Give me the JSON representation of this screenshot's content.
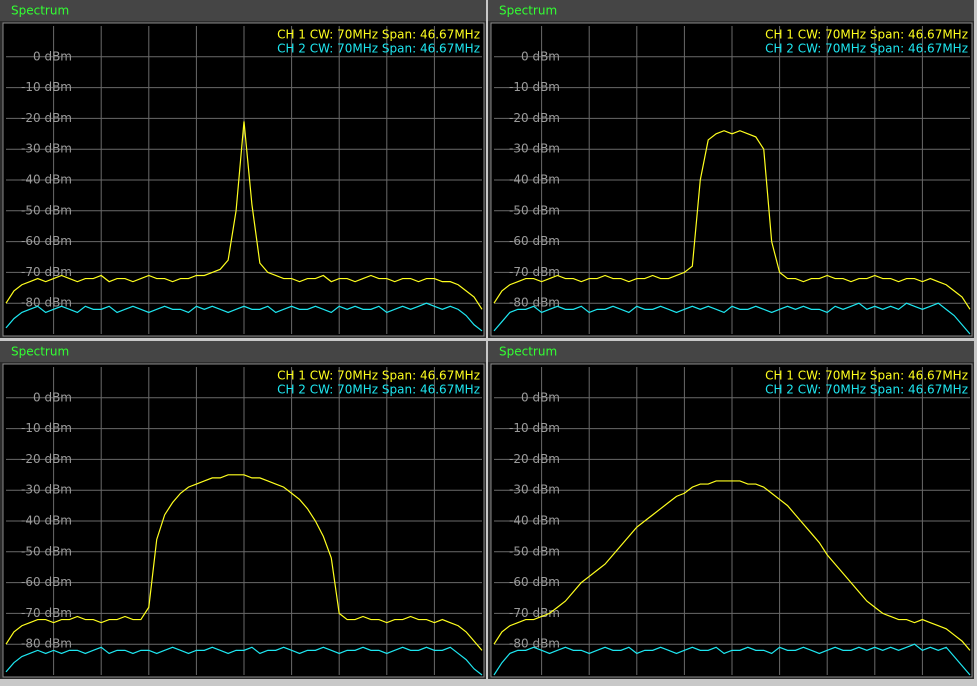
{
  "chart_data": [
    {
      "type": "line",
      "title": "Spectrum",
      "ylim": [
        -90,
        10
      ],
      "yticks": [
        {
          "value": 0,
          "label": "0 dBm"
        },
        {
          "value": -10,
          "label": "-10 dBm"
        },
        {
          "value": -20,
          "label": "-20 dBm"
        },
        {
          "value": -30,
          "label": "-30 dBm"
        },
        {
          "value": -40,
          "label": "-40 dBm"
        },
        {
          "value": -50,
          "label": "-50 dBm"
        },
        {
          "value": -60,
          "label": "-60 dBm"
        },
        {
          "value": -70,
          "label": "-70 dBm"
        },
        {
          "value": -80,
          "label": "-80 dBm"
        }
      ],
      "grid": true,
      "series": [
        {
          "name": "CH 1 CW: 70MHz Span: 46.67MHz",
          "color": "#ffff1e",
          "values": [
            -80,
            -76,
            -74,
            -73,
            -72,
            -73,
            -72,
            -71,
            -72,
            -73,
            -72,
            -72,
            -71,
            -73,
            -72,
            -72,
            -73,
            -72,
            -71,
            -72,
            -72,
            -73,
            -72,
            -72,
            -71,
            -71,
            -70,
            -69,
            -66,
            -50,
            -21,
            -48,
            -67,
            -70,
            -71,
            -72,
            -72,
            -73,
            -72,
            -72,
            -71,
            -73,
            -72,
            -72,
            -73,
            -72,
            -71,
            -72,
            -72,
            -73,
            -72,
            -72,
            -73,
            -72,
            -72,
            -73,
            -73,
            -74,
            -76,
            -78,
            -82
          ]
        },
        {
          "name": "CH 2 CW: 70MHz Span: 46.67MHz",
          "color": "#1ee6f0",
          "values": [
            -88,
            -85,
            -83,
            -82,
            -81,
            -83,
            -82,
            -81,
            -82,
            -83,
            -81,
            -82,
            -82,
            -81,
            -83,
            -82,
            -81,
            -82,
            -83,
            -82,
            -81,
            -82,
            -82,
            -83,
            -81,
            -82,
            -81,
            -82,
            -83,
            -82,
            -81,
            -82,
            -82,
            -81,
            -83,
            -82,
            -81,
            -82,
            -82,
            -81,
            -82,
            -83,
            -81,
            -82,
            -81,
            -82,
            -82,
            -81,
            -83,
            -82,
            -81,
            -82,
            -81,
            -80,
            -81,
            -82,
            -81,
            -82,
            -84,
            -87,
            -89
          ]
        }
      ]
    },
    {
      "type": "line",
      "title": "Spectrum",
      "ylim": [
        -90,
        10
      ],
      "yticks": [
        {
          "value": 0,
          "label": "0 dBm"
        },
        {
          "value": -10,
          "label": "-10 dBm"
        },
        {
          "value": -20,
          "label": "-20 dBm"
        },
        {
          "value": -30,
          "label": "-30 dBm"
        },
        {
          "value": -40,
          "label": "-40 dBm"
        },
        {
          "value": -50,
          "label": "-50 dBm"
        },
        {
          "value": -60,
          "label": "-60 dBm"
        },
        {
          "value": -70,
          "label": "-70 dBm"
        },
        {
          "value": -80,
          "label": "-80 dBm"
        }
      ],
      "grid": true,
      "series": [
        {
          "name": "CH 1 CW: 70MHz Span: 46.67MHz",
          "color": "#ffff1e",
          "values": [
            -80,
            -76,
            -74,
            -73,
            -72,
            -72,
            -73,
            -72,
            -71,
            -72,
            -72,
            -73,
            -72,
            -72,
            -71,
            -72,
            -72,
            -73,
            -72,
            -72,
            -71,
            -72,
            -72,
            -71,
            -70,
            -68,
            -40,
            -27,
            -25,
            -24,
            -25,
            -24,
            -25,
            -26,
            -30,
            -60,
            -70,
            -72,
            -72,
            -73,
            -72,
            -72,
            -71,
            -72,
            -72,
            -73,
            -72,
            -72,
            -71,
            -72,
            -72,
            -73,
            -72,
            -72,
            -73,
            -72,
            -73,
            -74,
            -76,
            -78,
            -82
          ]
        },
        {
          "name": "CH 2 CW: 70MHz Span: 46.67MHz",
          "color": "#1ee6f0",
          "values": [
            -89,
            -86,
            -83,
            -82,
            -82,
            -81,
            -83,
            -82,
            -81,
            -82,
            -82,
            -81,
            -83,
            -82,
            -82,
            -81,
            -82,
            -83,
            -81,
            -82,
            -82,
            -81,
            -82,
            -83,
            -82,
            -81,
            -82,
            -81,
            -82,
            -83,
            -81,
            -82,
            -82,
            -81,
            -82,
            -83,
            -82,
            -81,
            -82,
            -81,
            -82,
            -82,
            -83,
            -81,
            -82,
            -81,
            -80,
            -82,
            -81,
            -82,
            -81,
            -82,
            -80,
            -81,
            -82,
            -81,
            -80,
            -82,
            -84,
            -87,
            -90
          ]
        }
      ]
    },
    {
      "type": "line",
      "title": "Spectrum",
      "ylim": [
        -90,
        10
      ],
      "yticks": [
        {
          "value": 0,
          "label": "0 dBm"
        },
        {
          "value": -10,
          "label": "-10 dBm"
        },
        {
          "value": -20,
          "label": "-20 dBm"
        },
        {
          "value": -30,
          "label": "-30 dBm"
        },
        {
          "value": -40,
          "label": "-40 dBm"
        },
        {
          "value": -50,
          "label": "-50 dBm"
        },
        {
          "value": -60,
          "label": "-60 dBm"
        },
        {
          "value": -70,
          "label": "-70 dBm"
        },
        {
          "value": -80,
          "label": "-80 dBm"
        }
      ],
      "grid": true,
      "series": [
        {
          "name": "CH 1 CW: 70MHz Span: 46.67MHz",
          "color": "#ffff1e",
          "values": [
            -80,
            -76,
            -74,
            -73,
            -72,
            -72,
            -73,
            -72,
            -72,
            -71,
            -72,
            -72,
            -73,
            -72,
            -72,
            -71,
            -72,
            -72,
            -68,
            -46,
            -38,
            -34,
            -31,
            -29,
            -28,
            -27,
            -26,
            -26,
            -25,
            -25,
            -25,
            -26,
            -26,
            -27,
            -28,
            -29,
            -31,
            -33,
            -36,
            -40,
            -45,
            -52,
            -70,
            -72,
            -72,
            -71,
            -72,
            -72,
            -73,
            -72,
            -72,
            -71,
            -72,
            -72,
            -73,
            -72,
            -73,
            -74,
            -76,
            -79,
            -82
          ]
        },
        {
          "name": "CH 2 CW: 70MHz Span: 46.67MHz",
          "color": "#1ee6f0",
          "values": [
            -89,
            -86,
            -84,
            -83,
            -82,
            -83,
            -82,
            -83,
            -82,
            -82,
            -83,
            -82,
            -81,
            -83,
            -82,
            -82,
            -83,
            -82,
            -82,
            -83,
            -82,
            -81,
            -82,
            -83,
            -82,
            -82,
            -81,
            -82,
            -83,
            -82,
            -82,
            -81,
            -83,
            -82,
            -82,
            -81,
            -82,
            -83,
            -82,
            -82,
            -81,
            -82,
            -83,
            -82,
            -82,
            -81,
            -82,
            -82,
            -83,
            -82,
            -81,
            -82,
            -82,
            -81,
            -82,
            -82,
            -81,
            -83,
            -85,
            -88,
            -90
          ]
        }
      ]
    },
    {
      "type": "line",
      "title": "Spectrum",
      "ylim": [
        -90,
        10
      ],
      "yticks": [
        {
          "value": 0,
          "label": "0 dBm"
        },
        {
          "value": -10,
          "label": "-10 dBm"
        },
        {
          "value": -20,
          "label": "-20 dBm"
        },
        {
          "value": -30,
          "label": "-30 dBm"
        },
        {
          "value": -40,
          "label": "-40 dBm"
        },
        {
          "value": -50,
          "label": "-50 dBm"
        },
        {
          "value": -60,
          "label": "-60 dBm"
        },
        {
          "value": -70,
          "label": "-70 dBm"
        },
        {
          "value": -80,
          "label": "-80 dBm"
        }
      ],
      "grid": true,
      "series": [
        {
          "name": "CH 1 CW: 70MHz Span: 46.67MHz",
          "color": "#ffff1e",
          "values": [
            -80,
            -76,
            -74,
            -73,
            -72,
            -72,
            -71,
            -70,
            -68,
            -66,
            -63,
            -60,
            -58,
            -56,
            -54,
            -51,
            -48,
            -45,
            -42,
            -40,
            -38,
            -36,
            -34,
            -32,
            -31,
            -29,
            -28,
            -28,
            -27,
            -27,
            -27,
            -27,
            -28,
            -28,
            -29,
            -31,
            -33,
            -35,
            -38,
            -41,
            -44,
            -47,
            -51,
            -54,
            -57,
            -60,
            -63,
            -66,
            -68,
            -70,
            -71,
            -72,
            -72,
            -73,
            -72,
            -73,
            -74,
            -75,
            -77,
            -79,
            -82
          ]
        },
        {
          "name": "CH 2 CW: 70MHz Span: 46.67MHz",
          "color": "#1ee6f0",
          "values": [
            -90,
            -86,
            -83,
            -82,
            -82,
            -81,
            -82,
            -83,
            -82,
            -81,
            -82,
            -82,
            -83,
            -82,
            -81,
            -82,
            -82,
            -81,
            -83,
            -82,
            -82,
            -81,
            -82,
            -83,
            -82,
            -81,
            -82,
            -82,
            -81,
            -83,
            -82,
            -82,
            -81,
            -82,
            -82,
            -83,
            -81,
            -82,
            -82,
            -81,
            -82,
            -83,
            -82,
            -81,
            -82,
            -82,
            -81,
            -82,
            -81,
            -82,
            -81,
            -82,
            -81,
            -80,
            -82,
            -81,
            -82,
            -81,
            -84,
            -87,
            -90
          ]
        }
      ]
    }
  ]
}
